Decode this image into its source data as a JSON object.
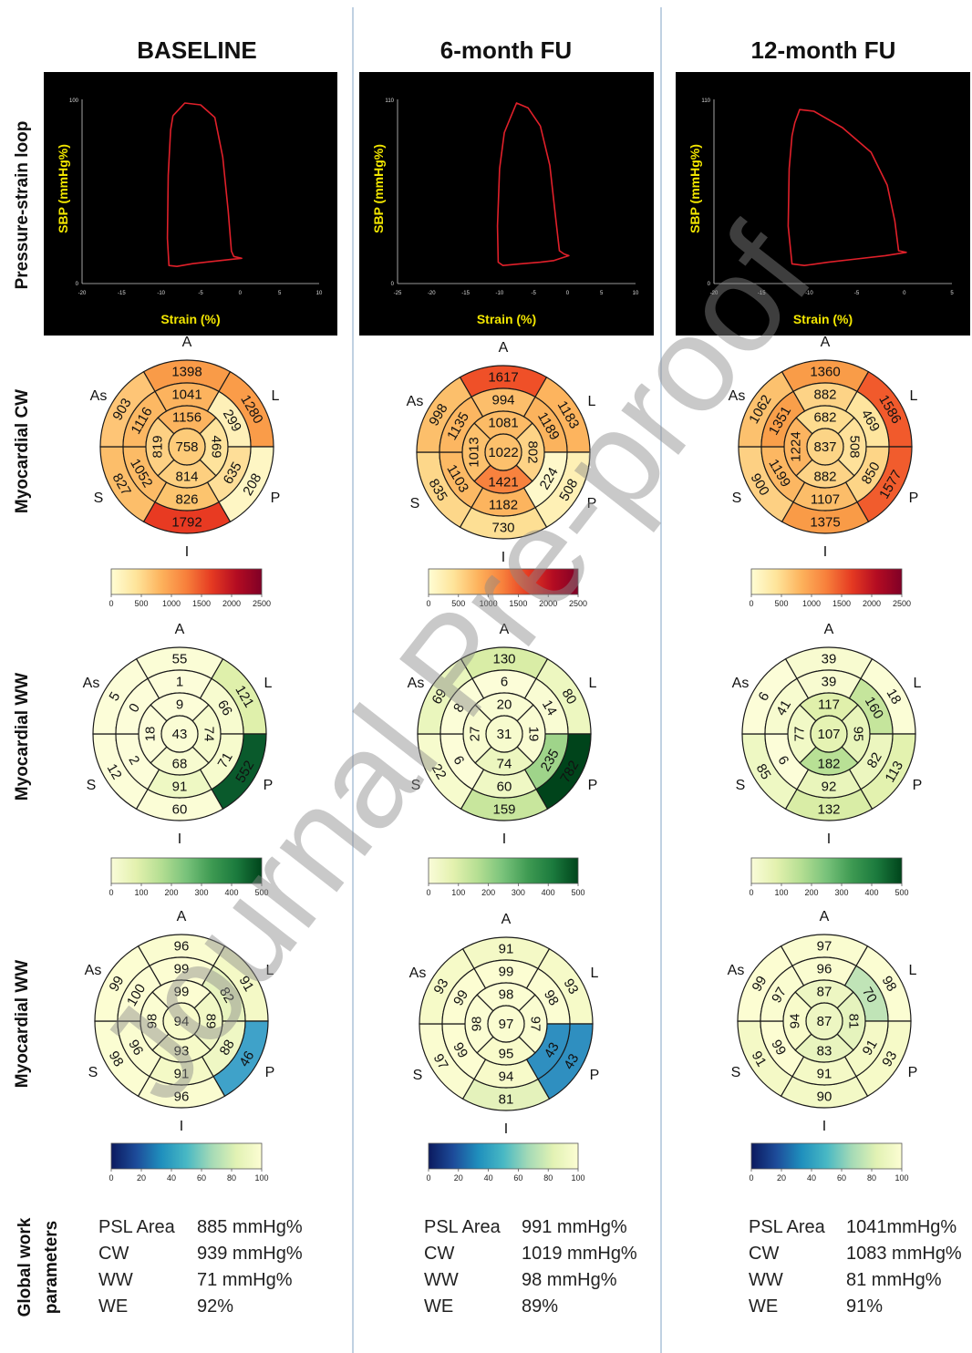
{
  "watermark": "Journal Pre-proof",
  "columns": [
    {
      "title": "BASELINE"
    },
    {
      "title": "6-month FU"
    },
    {
      "title": "12-month FU"
    }
  ],
  "row_labels": [
    "Pressure-strain loop",
    "Myocardial CW",
    "Myocardial WW",
    "Myocardial WW",
    "Global work parameters"
  ],
  "wall_labels": [
    "A",
    "L",
    "P",
    "I",
    "S",
    "As"
  ],
  "loops": [
    {
      "xlabel": "Strain (%)",
      "ylabel": "SBP (mmHg%)",
      "xticks": [
        "-20",
        "-15",
        "-10",
        "-5",
        "0",
        "5",
        "10"
      ],
      "ytop": "100",
      "ybottom": "0",
      "xmin": -20,
      "xmax": 10,
      "ymax": 100,
      "curve": [
        [
          -8.5,
          93
        ],
        [
          -7,
          100
        ],
        [
          -5,
          99
        ],
        [
          -3.2,
          92
        ],
        [
          -2.2,
          70
        ],
        [
          -1.5,
          40
        ],
        [
          -1.1,
          18
        ],
        [
          -0.8,
          15
        ],
        [
          0.2,
          14
        ],
        [
          -2,
          13
        ],
        [
          -4,
          12
        ],
        [
          -6,
          11
        ],
        [
          -8,
          9.5
        ],
        [
          -9,
          10
        ],
        [
          -9.2,
          25
        ],
        [
          -9.1,
          60
        ],
        [
          -8.8,
          85
        ],
        [
          -8.5,
          93
        ]
      ]
    },
    {
      "xlabel": "Strain (%)",
      "ylabel": "SBP (mmHg%)",
      "xticks": [
        "-25",
        "-20",
        "-15",
        "-10",
        "-5",
        "0",
        "5",
        "10"
      ],
      "ytop": "110",
      "ybottom": "0",
      "xmin": -25,
      "xmax": 10,
      "ymax": 110,
      "curve": [
        [
          -8.5,
          100
        ],
        [
          -7.5,
          110
        ],
        [
          -5.8,
          107
        ],
        [
          -4,
          96
        ],
        [
          -2.6,
          72
        ],
        [
          -1.8,
          42
        ],
        [
          -1.2,
          20
        ],
        [
          -0.5,
          18
        ],
        [
          0.2,
          17
        ],
        [
          -2,
          14
        ],
        [
          -4,
          13
        ],
        [
          -7,
          12
        ],
        [
          -9.5,
          11
        ],
        [
          -10.2,
          13
        ],
        [
          -10.3,
          35
        ],
        [
          -10,
          70
        ],
        [
          -9.3,
          92
        ],
        [
          -8.5,
          100
        ]
      ]
    },
    {
      "xlabel": "Strain (%)",
      "ylabel": "SBP (mmHg%)",
      "xticks": [
        "-20",
        "-15",
        "-10",
        "-5",
        "0",
        "5"
      ],
      "ytop": "110",
      "ybottom": "0",
      "xmin": -20,
      "xmax": 5,
      "ymax": 110,
      "curve": [
        [
          -11.5,
          98
        ],
        [
          -11,
          106
        ],
        [
          -9.5,
          105
        ],
        [
          -6.5,
          95
        ],
        [
          -3.5,
          80
        ],
        [
          -1.8,
          60
        ],
        [
          -1,
          38
        ],
        [
          -0.6,
          20
        ],
        [
          0.2,
          19
        ],
        [
          -2,
          17
        ],
        [
          -5,
          15
        ],
        [
          -8,
          13
        ],
        [
          -10.5,
          11
        ],
        [
          -11.8,
          12
        ],
        [
          -12.2,
          35
        ],
        [
          -12.1,
          70
        ],
        [
          -11.8,
          90
        ],
        [
          -11.5,
          98
        ]
      ]
    }
  ],
  "colorbars": [
    {
      "ticks": [
        "0",
        "500",
        "1000",
        "1500",
        "2000",
        "2500"
      ],
      "colors": [
        "#fffdd4",
        "#fee49a",
        "#fdb25c",
        "#f77f3b",
        "#e53a22",
        "#b40c22",
        "#800026"
      ]
    },
    {
      "ticks": [
        "0",
        "100",
        "200",
        "300",
        "400",
        "500"
      ],
      "colors": [
        "#fafcd9",
        "#e3f1ae",
        "#b4de92",
        "#78c27a",
        "#3e9a52",
        "#1b7a3d",
        "#00441b"
      ]
    },
    {
      "ticks": [
        "0",
        "20",
        "40",
        "60",
        "80",
        "100"
      ],
      "colors": [
        "#0b1a5f",
        "#1d4c9a",
        "#1f8fbd",
        "#48b8c4",
        "#a4dab6",
        "#e2f2b4",
        "#fcfdd3"
      ]
    }
  ],
  "bullseyes": [
    [
      {
        "values": [
          "1398",
          "1280",
          "208",
          "1792",
          "827",
          "903",
          "1041",
          "299",
          "635",
          "826",
          "1052",
          "1116",
          "1156",
          "469",
          "814",
          "819",
          "758"
        ],
        "colors": [
          "#f99b48",
          "#fa9c49",
          "#fef6c4",
          "#e83a22",
          "#fcbe6a",
          "#fec576",
          "#fcb35e",
          "#fef0b8",
          "#fede98",
          "#fcc46e",
          "#fcbb66",
          "#fcb863",
          "#fcb45f",
          "#fee39c",
          "#fdcf7f",
          "#fdd083",
          "#fdcb79"
        ]
      },
      {
        "values": [
          "55",
          "121",
          "552",
          "60",
          "12",
          "5",
          "1",
          "66",
          "71",
          "91",
          "2",
          "0",
          "9",
          "74",
          "68",
          "18",
          "43"
        ],
        "colors": [
          "#fbfdd6",
          "#dff0ab",
          "#0a5a2c",
          "#fbfdd6",
          "#fcfdd8",
          "#fcfdd8",
          "#fcfdd9",
          "#f7fbcf",
          "#f6fbcd",
          "#eef8c3",
          "#fcfdd9",
          "#fcfdd9",
          "#fcfdd8",
          "#f6fbcd",
          "#f7fbcf",
          "#fcfdd8",
          "#fafcd4"
        ]
      },
      {
        "values": [
          "96",
          "91",
          "46",
          "96",
          "98",
          "99",
          "99",
          "82",
          "88",
          "91",
          "96",
          "100",
          "99",
          "89",
          "93",
          "98",
          "94"
        ],
        "colors": [
          "#fafcd0",
          "#f4f9c6",
          "#3fa2c9",
          "#fafcd0",
          "#fbfdd2",
          "#fcfdd2",
          "#fcfdd2",
          "#e8f4be",
          "#eff7c4",
          "#f4f9c6",
          "#fafcd0",
          "#fcfdd3",
          "#fcfdd2",
          "#f1f8c5",
          "#f6fac8",
          "#fbfdd2",
          "#f8fbca"
        ]
      }
    ],
    [
      {
        "values": [
          "1617",
          "1183",
          "508",
          "730",
          "835",
          "998",
          "994",
          "1189",
          "224",
          "1182",
          "1103",
          "1135",
          "1081",
          "802",
          "1421",
          "1013",
          "1022"
        ],
        "colors": [
          "#ef5028",
          "#fdb45e",
          "#fef0b5",
          "#fddf94",
          "#fdd78a",
          "#fcbf6b",
          "#fcbe6b",
          "#fbb35d",
          "#fef8ca",
          "#fcb45e",
          "#fcb964",
          "#fcb661",
          "#fcbb66",
          "#fdd386",
          "#f8823e",
          "#fcc16d",
          "#fcc06c"
        ]
      },
      {
        "values": [
          "130",
          "80",
          "782",
          "159",
          "22",
          "69",
          "6",
          "14",
          "235",
          "60",
          "6",
          "8",
          "20",
          "19",
          "74",
          "27",
          "31"
        ],
        "colors": [
          "#d9eda6",
          "#edf7c0",
          "#00441b",
          "#c8e69d",
          "#f6fbcd",
          "#eaf6bd",
          "#fcfdd8",
          "#f9fcd3",
          "#9fd48a",
          "#eff8c4",
          "#fcfdd8",
          "#fbfdd7",
          "#f9fcd2",
          "#f9fcd2",
          "#ecf6bf",
          "#f8fbcf",
          "#f7fbce"
        ]
      },
      {
        "values": [
          "91",
          "93",
          "43",
          "81",
          "97",
          "93",
          "99",
          "98",
          "43",
          "94",
          "99",
          "99",
          "98",
          "97",
          "95",
          "98",
          "97"
        ],
        "colors": [
          "#f4f9c6",
          "#f6fac8",
          "#2f8fc0",
          "#e4f2bb",
          "#fafcd0",
          "#f6fac8",
          "#fcfdd2",
          "#fbfdd2",
          "#2f8fc0",
          "#f7fac9",
          "#fcfdd2",
          "#fcfdd2",
          "#fbfdd2",
          "#fafcd0",
          "#f8fbca",
          "#fbfdd2",
          "#fafcd0"
        ]
      }
    ],
    [
      {
        "values": [
          "1360",
          "1586",
          "1577",
          "1375",
          "900",
          "1062",
          "882",
          "469",
          "850",
          "1107",
          "1199",
          "1351",
          "682",
          "508",
          "882",
          "1224",
          "837"
        ],
        "colors": [
          "#f99c48",
          "#f15a2c",
          "#f15c2d",
          "#f99b47",
          "#fdd083",
          "#fcc16e",
          "#fdd386",
          "#fee59e",
          "#fdd587",
          "#fcbd69",
          "#fcb762",
          "#f99f4a",
          "#fddc8f",
          "#fee19a",
          "#fdd386",
          "#fcb460",
          "#fcd486"
        ]
      },
      {
        "values": [
          "39",
          "18",
          "113",
          "132",
          "85",
          "6",
          "39",
          "160",
          "82",
          "92",
          "6",
          "41",
          "117",
          "95",
          "182",
          "77",
          "107"
        ],
        "colors": [
          "#f8fbd0",
          "#fbfdd6",
          "#e3f2af",
          "#d9eda6",
          "#eef8c3",
          "#fcfdd8",
          "#f8fbd0",
          "#c5e59c",
          "#ecf6bf",
          "#e9f5bb",
          "#fcfdd8",
          "#f7fbcf",
          "#e0f0ab",
          "#e8f5ba",
          "#b8e095",
          "#f1f9c6",
          "#e5f3b3"
        ]
      },
      {
        "values": [
          "97",
          "98",
          "93",
          "90",
          "91",
          "99",
          "96",
          "70",
          "91",
          "91",
          "99",
          "97",
          "87",
          "81",
          "83",
          "94",
          "87"
        ],
        "colors": [
          "#fafcd0",
          "#fbfdd2",
          "#f6fac8",
          "#f3f9c6",
          "#f4f9c6",
          "#fcfdd2",
          "#fafcd0",
          "#c0e4b7",
          "#f4f9c6",
          "#f4f9c6",
          "#fcfdd2",
          "#fafcd0",
          "#edf6c2",
          "#e5f3bd",
          "#e8f4be",
          "#f8fbca",
          "#edf6c2"
        ]
      }
    ]
  ],
  "global_params": [
    [
      {
        "label": "PSL Area",
        "value": "885 mmHg%"
      },
      {
        "label": "CW",
        "value": "939 mmHg%"
      },
      {
        "label": "WW",
        "value": "71 mmHg%"
      },
      {
        "label": "WE",
        "value": "92%"
      }
    ],
    [
      {
        "label": "PSL Area",
        "value": "991 mmHg%"
      },
      {
        "label": "CW",
        "value": "1019 mmHg%"
      },
      {
        "label": "WW",
        "value": "98 mmHg%"
      },
      {
        "label": "WE",
        "value": "89%"
      }
    ],
    [
      {
        "label": "PSL Area",
        "value": "1041mmHg%"
      },
      {
        "label": "CW",
        "value": "1083 mmHg%"
      },
      {
        "label": "WW",
        "value": "81 mmHg%"
      },
      {
        "label": "WE",
        "value": "91%"
      }
    ]
  ]
}
